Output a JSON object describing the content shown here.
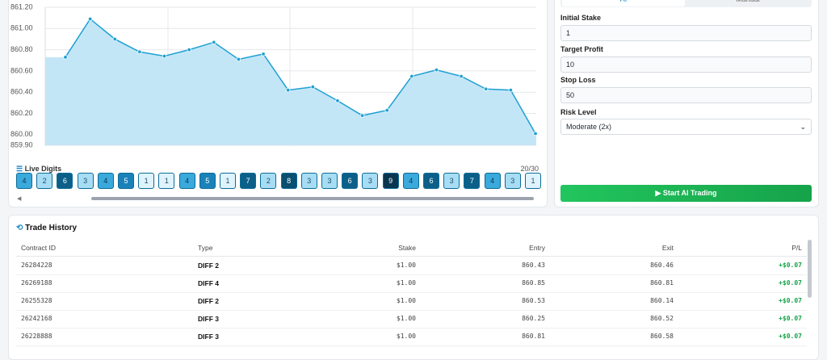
{
  "chart": {
    "type": "line",
    "color": "#1ea0d2",
    "fill": "#c3e6f7",
    "ylim": [
      859.9,
      861.2
    ],
    "yticks": [
      {
        "value": 861.2,
        "label": "861.20"
      },
      {
        "value": 861.0,
        "label": "861.00"
      },
      {
        "value": 860.8,
        "label": "860.80"
      },
      {
        "value": 860.6,
        "label": "860.60"
      },
      {
        "value": 860.4,
        "label": "860.40"
      },
      {
        "value": 860.2,
        "label": "860.20"
      },
      {
        "value": 860.0,
        "label": "860.00"
      },
      {
        "value": 859.9,
        "label": "859.90"
      }
    ],
    "values": [
      860.73,
      861.09,
      860.9,
      860.78,
      860.74,
      860.8,
      860.87,
      860.71,
      860.76,
      860.42,
      860.45,
      860.32,
      860.18,
      860.23,
      860.55,
      860.61,
      860.55,
      860.43,
      860.42,
      860.01
    ]
  },
  "live_digits": {
    "title": "Live Digits",
    "count": "20/30",
    "digits": [
      4,
      2,
      6,
      3,
      4,
      5,
      1,
      1,
      4,
      5,
      1,
      7,
      2,
      8,
      3,
      3,
      6,
      3,
      9,
      4,
      6,
      3,
      7,
      4,
      3,
      1
    ]
  },
  "settings": {
    "tabs": [
      "AI",
      "Manual"
    ],
    "fields": [
      {
        "label": "Initial Stake",
        "value": "1"
      },
      {
        "label": "Target Profit",
        "value": "10"
      },
      {
        "label": "Stop Loss",
        "value": "50"
      }
    ],
    "risk_level": {
      "label": "Risk Level",
      "value": "Moderate (2x)"
    },
    "button": "▶ Start AI Trading"
  },
  "trade_history": {
    "title": "Trade History",
    "columns": [
      "Contract ID",
      "Type",
      "Stake",
      "Entry",
      "Exit",
      "P/L"
    ],
    "rows": [
      [
        "26284228",
        "DIFF 2",
        "$1.00",
        "860.43",
        "860.46",
        "+$0.07"
      ],
      [
        "26269188",
        "DIFF 4",
        "$1.00",
        "860.85",
        "860.81",
        "+$0.07"
      ],
      [
        "26255328",
        "DIFF 2",
        "$1.00",
        "860.53",
        "860.14",
        "+$0.07"
      ],
      [
        "26242168",
        "DIFF 3",
        "$1.00",
        "860.25",
        "860.52",
        "+$0.07"
      ],
      [
        "26228888",
        "DIFF 3",
        "$1.00",
        "860.81",
        "860.58",
        "+$0.07"
      ]
    ]
  }
}
